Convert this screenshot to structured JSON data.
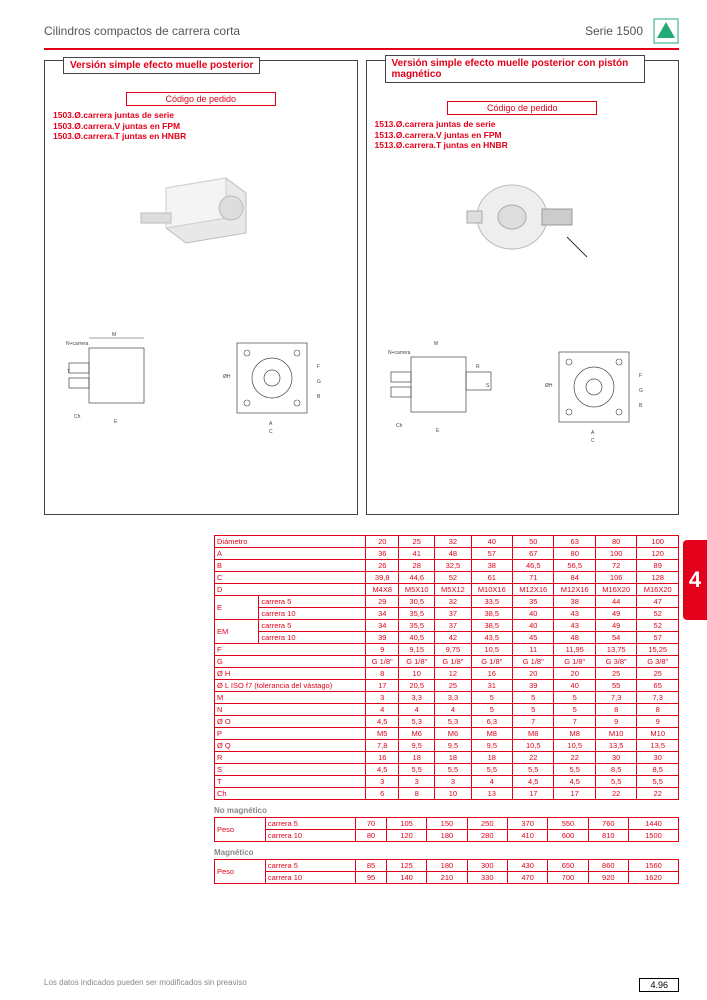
{
  "header": {
    "title_left": "Cilindros compactos de carrera corta",
    "title_right": "Serie 1500",
    "logo_label": "PNEUMAX"
  },
  "left_box": {
    "title": "Versión simple efecto muelle posterior",
    "codigo_label": "Código de pedido",
    "codes": [
      "1503.Ø.carrera juntas de serie",
      "1503.Ø.carrera.V juntas en FPM",
      "1503.Ø.carrera.T juntas en HNBR"
    ]
  },
  "right_box": {
    "title": "Versión simple efecto muelle posterior con pistón magnético",
    "codigo_label": "Código de pedido",
    "codes": [
      "1513.Ø.carrera juntas de serie",
      "1513.Ø.carrera.V juntas en FPM",
      "1513.Ø.carrera.T juntas en HNBR"
    ]
  },
  "section_number": "4",
  "table": {
    "header_label": "Diámetro",
    "diameters": [
      "20",
      "25",
      "32",
      "40",
      "50",
      "63",
      "80",
      "100"
    ],
    "rows": [
      {
        "l": "A",
        "v": [
          "36",
          "41",
          "48",
          "57",
          "67",
          "80",
          "100",
          "120"
        ]
      },
      {
        "l": "B",
        "v": [
          "26",
          "28",
          "32,5",
          "38",
          "46,5",
          "56,5",
          "72",
          "89"
        ]
      },
      {
        "l": "C",
        "v": [
          "39,8",
          "44,6",
          "52",
          "61",
          "71",
          "84",
          "106",
          "128"
        ]
      },
      {
        "l": "D",
        "v": [
          "M4X8",
          "M5X10",
          "M5X12",
          "M10X16",
          "M12X16",
          "M12X16",
          "M16X20",
          "M16X20"
        ]
      }
    ],
    "rows_e": [
      {
        "l": "E",
        "sub": "carrera 5",
        "v": [
          "29",
          "30,5",
          "32",
          "33,5",
          "35",
          "38",
          "44",
          "47"
        ]
      },
      {
        "l": "",
        "sub": "carrera 10",
        "v": [
          "34",
          "35,5",
          "37",
          "38,5",
          "40",
          "43",
          "49",
          "52"
        ]
      }
    ],
    "rows_em": [
      {
        "l": "EM",
        "sub": "carrera 5",
        "v": [
          "34",
          "35,5",
          "37",
          "38,5",
          "40",
          "43",
          "49",
          "52"
        ]
      },
      {
        "l": "",
        "sub": "carrera 10",
        "v": [
          "39",
          "40,5",
          "42",
          "43,5",
          "45",
          "48",
          "54",
          "57"
        ]
      }
    ],
    "rows2": [
      {
        "l": "F",
        "v": [
          "9",
          "9,15",
          "9,75",
          "10,5",
          "11",
          "11,95",
          "13,75",
          "15,25"
        ]
      },
      {
        "l": "G",
        "v": [
          "G 1/8\"",
          "G 1/8\"",
          "G 1/8\"",
          "G 1/8\"",
          "G 1/8\"",
          "G 1/8\"",
          "G 3/8\"",
          "G 3/8\""
        ]
      },
      {
        "l": "Ø H",
        "v": [
          "8",
          "10",
          "12",
          "16",
          "20",
          "20",
          "25",
          "25"
        ]
      },
      {
        "l": "Ø L ISO f7 (tolerancia del vástago)",
        "v": [
          "17",
          "20,5",
          "25",
          "31",
          "39",
          "40",
          "55",
          "65"
        ]
      },
      {
        "l": "M",
        "v": [
          "3",
          "3,3",
          "3,3",
          "5",
          "5",
          "5",
          "7,3",
          "7,3"
        ]
      },
      {
        "l": "N",
        "v": [
          "4",
          "4",
          "4",
          "5",
          "5",
          "5",
          "8",
          "8"
        ]
      },
      {
        "l": "Ø O",
        "v": [
          "4,5",
          "5,3",
          "5,3",
          "6,3",
          "7",
          "7",
          "9",
          "9"
        ]
      },
      {
        "l": "P",
        "v": [
          "M5",
          "M6",
          "M6",
          "M8",
          "M8",
          "M8",
          "M10",
          "M10"
        ]
      },
      {
        "l": "Ø Q",
        "v": [
          "7,8",
          "9,5",
          "9,5",
          "9,5",
          "10,5",
          "10,5",
          "13,5",
          "13,5"
        ]
      },
      {
        "l": "R",
        "v": [
          "16",
          "18",
          "18",
          "18",
          "22",
          "22",
          "30",
          "30"
        ]
      },
      {
        "l": "S",
        "v": [
          "4,5",
          "5,5",
          "5,5",
          "5,5",
          "5,5",
          "5,5",
          "8,5",
          "8,5"
        ]
      },
      {
        "l": "T",
        "v": [
          "3",
          "3",
          "3",
          "4",
          "4,5",
          "4,5",
          "5,5",
          "5,5"
        ]
      },
      {
        "l": "Ch",
        "v": [
          "6",
          "8",
          "10",
          "13",
          "17",
          "17",
          "22",
          "22"
        ]
      }
    ],
    "peso_nm_label": "No magnético",
    "peso_nm": [
      {
        "l": "Peso",
        "sub": "carrera 5",
        "v": [
          "70",
          "105",
          "150",
          "250",
          "370",
          "550",
          "760",
          "1440"
        ]
      },
      {
        "l": "gr.",
        "sub": "carrera 10",
        "v": [
          "80",
          "120",
          "180",
          "280",
          "410",
          "600",
          "810",
          "1500"
        ]
      }
    ],
    "peso_m_label": "Magnético",
    "peso_m": [
      {
        "l": "Peso",
        "sub": "carrera 5",
        "v": [
          "85",
          "125",
          "180",
          "300",
          "430",
          "650",
          "860",
          "1560"
        ]
      },
      {
        "l": "gr.",
        "sub": "carrera 10",
        "v": [
          "95",
          "140",
          "210",
          "330",
          "470",
          "700",
          "920",
          "1620"
        ]
      }
    ]
  },
  "footer": {
    "note": "Los datos indicados pueden ser modificados sin preaviso",
    "page": "4.96"
  }
}
